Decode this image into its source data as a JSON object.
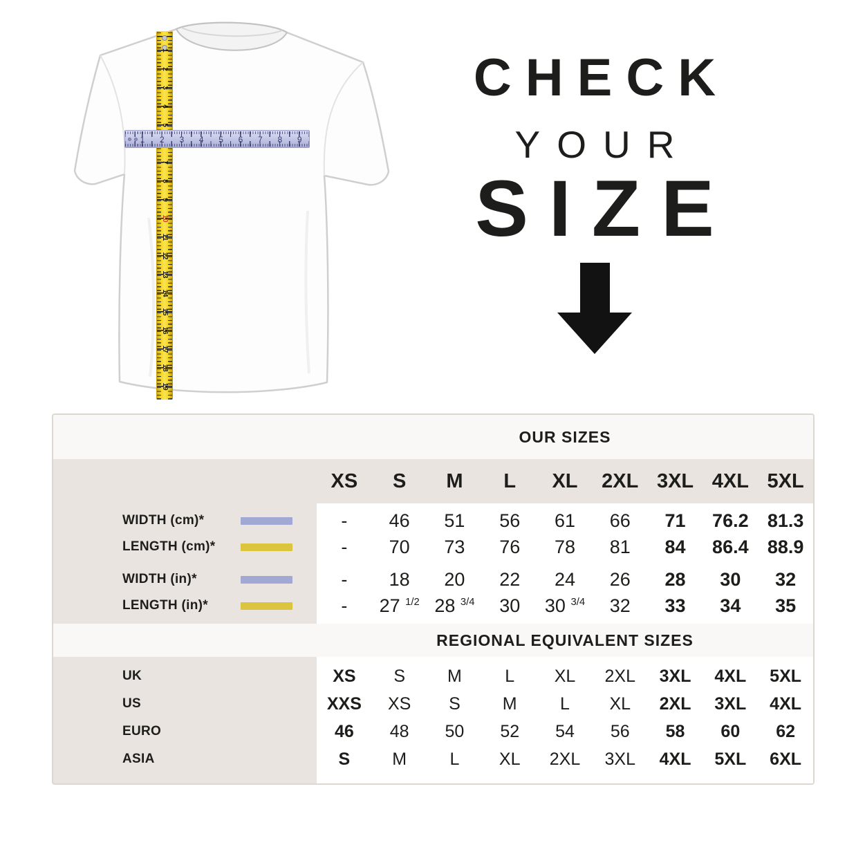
{
  "hero": {
    "line1": "CHECK",
    "line2": "YOUR",
    "line3": "SIZE",
    "tape_numbers": [
      "1",
      "2",
      "3",
      "4",
      "5",
      "6",
      "7",
      "8",
      "9",
      "10",
      "11",
      "12",
      "13",
      "14",
      "15",
      "16",
      "17",
      "18",
      "19"
    ],
    "tape_red_number": "10",
    "ruler_numbers": [
      "1",
      "2",
      "3",
      "4",
      "5",
      "6",
      "7",
      "8",
      "9"
    ]
  },
  "colors": {
    "beige": "#eae4e0",
    "offwhite": "#faf8f6",
    "text": "#1d1d1b",
    "width_swatch": "#a0a8d3",
    "length_swatch": "#dcc53e",
    "tape_yellow": "#f6d724",
    "tape_number_red": "#d43a2a",
    "ruler_lavender": "#c6c9e8"
  },
  "chart_data": {
    "type": "table",
    "tables": [
      {
        "title": "OUR SIZES",
        "columns": [
          "XS",
          "S",
          "M",
          "L",
          "XL",
          "2XL",
          "3XL",
          "4XL",
          "5XL"
        ],
        "gap_after": [
          1
        ],
        "rows": [
          {
            "label": "WIDTH (cm)*",
            "swatch": "width_swatch",
            "values": [
              "-",
              "46",
              "51",
              "56",
              "61",
              "66",
              "71",
              "76.2",
              "81.3"
            ],
            "bold_columns": [
              6,
              7,
              8
            ]
          },
          {
            "label": "LENGTH (cm)*",
            "swatch": "length_swatch",
            "values": [
              "-",
              "70",
              "73",
              "76",
              "78",
              "81",
              "84",
              "86.4",
              "88.9"
            ],
            "bold_columns": [
              6,
              7,
              8
            ]
          },
          {
            "label": "WIDTH (in)*",
            "swatch": "width_swatch",
            "values": [
              "-",
              "18",
              "20",
              "22",
              "24",
              "26",
              "28",
              "30",
              "32"
            ],
            "bold_columns": [
              6,
              7,
              8
            ]
          },
          {
            "label": "LENGTH (in)*",
            "swatch": "length_swatch",
            "values": [
              "-",
              "27^1/2",
              "28^3/4",
              "30",
              "30^3/4",
              "32",
              "33",
              "34",
              "35"
            ],
            "bold_columns": [
              6,
              7,
              8
            ]
          }
        ]
      },
      {
        "title": "REGIONAL EQUIVALENT SIZES",
        "rows": [
          {
            "label": "UK",
            "values": [
              "XS",
              "S",
              "M",
              "L",
              "XL",
              "2XL",
              "3XL",
              "4XL",
              "5XL"
            ],
            "bold_columns": [
              0,
              6,
              7,
              8
            ]
          },
          {
            "label": "US",
            "values": [
              "XXS",
              "XS",
              "S",
              "M",
              "L",
              "XL",
              "2XL",
              "3XL",
              "4XL"
            ],
            "bold_columns": [
              0,
              6,
              7,
              8
            ]
          },
          {
            "label": "EURO",
            "values": [
              "46",
              "48",
              "50",
              "52",
              "54",
              "56",
              "58",
              "60",
              "62"
            ],
            "bold_columns": [
              0,
              6,
              7,
              8
            ]
          },
          {
            "label": "ASIA",
            "values": [
              "S",
              "M",
              "L",
              "XL",
              "2XL",
              "3XL",
              "4XL",
              "5XL",
              "6XL"
            ],
            "bold_columns": [
              0,
              6,
              7,
              8
            ]
          }
        ]
      }
    ]
  }
}
